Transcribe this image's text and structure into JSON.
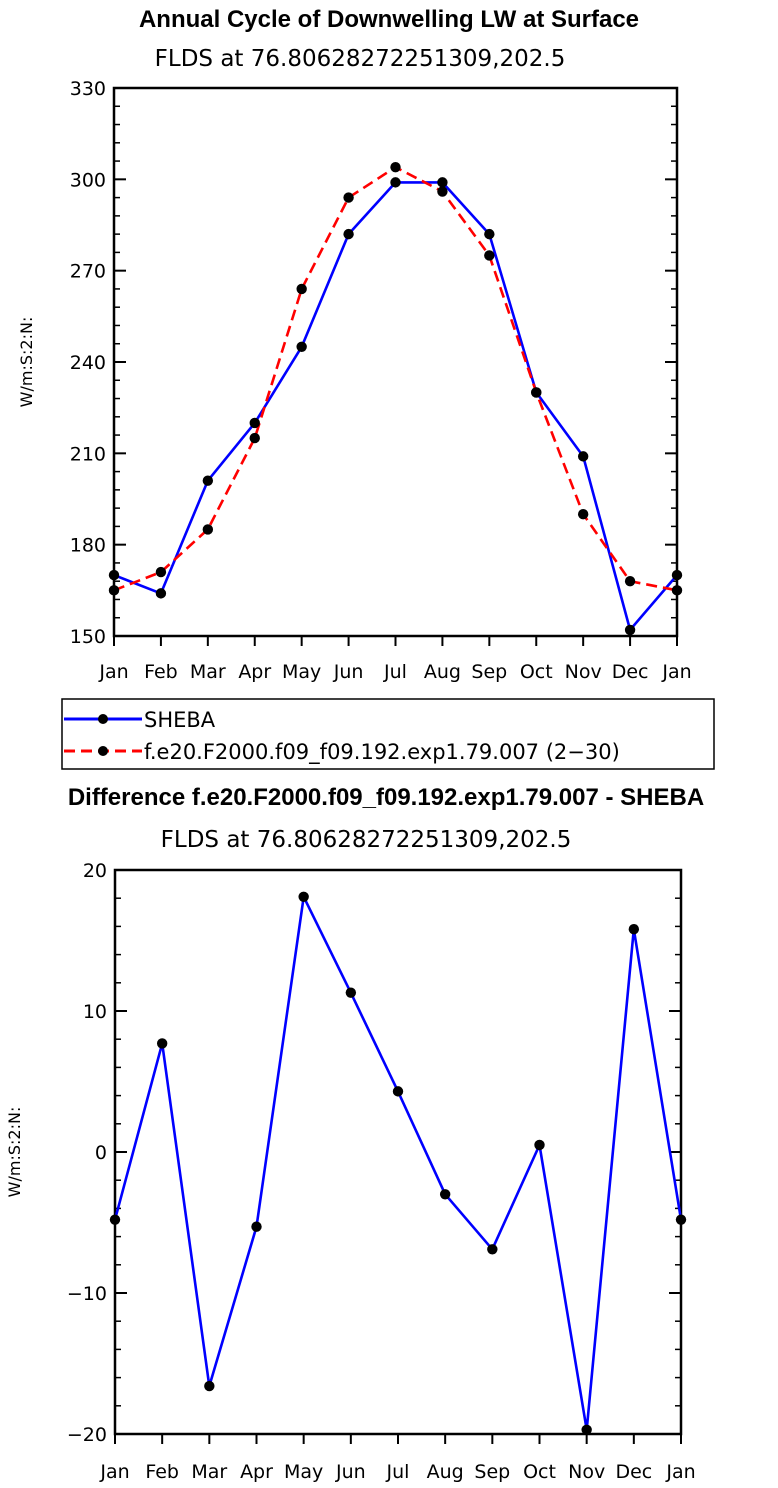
{
  "chart_data": [
    {
      "type": "line",
      "title": "Annual Cycle of Downwelling LW at Surface",
      "subtitle": "FLDS at 76.80628272251309,202.5",
      "ylabel": "W/m:S:2:N:",
      "xlabel": "",
      "categories": [
        "Jan",
        "Feb",
        "Mar",
        "Apr",
        "May",
        "Jun",
        "Jul",
        "Aug",
        "Sep",
        "Oct",
        "Nov",
        "Dec",
        "Jan"
      ],
      "ylim": [
        150,
        330
      ],
      "yticks": [
        150,
        180,
        210,
        240,
        270,
        300,
        330
      ],
      "series": [
        {
          "name": "SHEBA",
          "color": "#0000ff",
          "dash": "solid",
          "values": [
            170,
            164,
            201,
            220,
            245,
            282,
            299,
            299,
            282,
            230,
            209,
            152,
            170
          ]
        },
        {
          "name": "f.e20.F2000.f09_f09.192.exp1.79.007 (2−30)",
          "color": "#ff0000",
          "dash": "dashed",
          "values": [
            165,
            171,
            185,
            215,
            264,
            294,
            304,
            296,
            275,
            230,
            190,
            168,
            165
          ]
        }
      ],
      "legend": {
        "position": "bottom-left"
      }
    },
    {
      "type": "line",
      "title": "Difference f.e20.F2000.f09_f09.192.exp1.79.007 - SHEBA",
      "subtitle": "FLDS at 76.80628272251309,202.5",
      "ylabel": "W/m:S:2:N:",
      "xlabel": "",
      "categories": [
        "Jan",
        "Feb",
        "Mar",
        "Apr",
        "May",
        "Jun",
        "Jul",
        "Aug",
        "Sep",
        "Oct",
        "Nov",
        "Dec",
        "Jan"
      ],
      "ylim": [
        -20,
        20
      ],
      "yticks": [
        -20,
        -10,
        0,
        10,
        20
      ],
      "ytick_labels": [
        "−20",
        "−10",
        "0",
        "10",
        "20"
      ],
      "series": [
        {
          "name": "Difference",
          "color": "#0000ff",
          "dash": "solid",
          "values": [
            -4.8,
            7.7,
            -16.6,
            -5.3,
            18.1,
            11.3,
            4.3,
            -3.0,
            -6.9,
            0.5,
            -19.7,
            15.8,
            -4.8
          ]
        }
      ]
    }
  ]
}
